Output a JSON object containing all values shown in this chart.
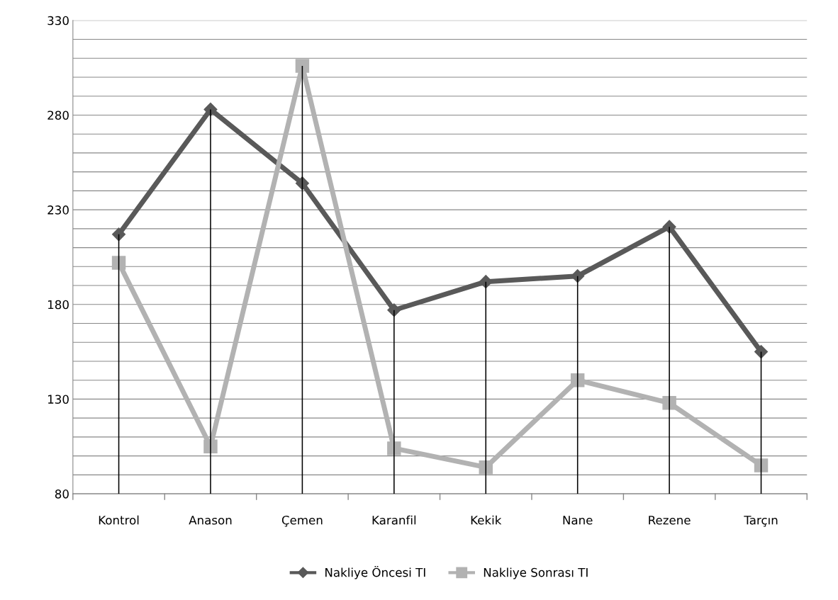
{
  "chart_data": {
    "type": "line",
    "categories": [
      "Kontrol",
      "Anason",
      "Çemen",
      "Karanfil",
      "Kekik",
      "Nane",
      "Rezene",
      "Tarçın"
    ],
    "series": [
      {
        "name": "Nakliye Öncesi TI",
        "color": "#595959",
        "marker": "diamond",
        "values": [
          217,
          283,
          244,
          177,
          192,
          195,
          221,
          155
        ]
      },
      {
        "name": "Nakliye Sonrası TI",
        "color": "#b2b2b2",
        "marker": "square",
        "values": [
          202,
          105,
          306,
          104,
          94,
          140,
          128,
          95
        ]
      },
      {
        "type": "bar",
        "color": "#000000",
        "values": [
          217,
          283,
          306,
          177,
          192,
          195,
          221,
          155
        ]
      }
    ],
    "ylim": [
      80,
      330
    ],
    "yticks": [
      80,
      {
        "value": 90,
        "label": null
      },
      {
        "value": 100,
        "label": null
      },
      {
        "value": 110,
        "label": null
      },
      {
        "value": 120,
        "label": null
      },
      130,
      {
        "value": 140,
        "label": null
      },
      {
        "value": 150,
        "label": null
      },
      {
        "value": 160,
        "label": null
      },
      {
        "value": 170,
        "label": null
      },
      180,
      {
        "value": 190,
        "label": null
      },
      {
        "value": 200,
        "label": null
      },
      {
        "value": 210,
        "label": null
      },
      {
        "value": 220,
        "label": null
      },
      230,
      {
        "value": 240,
        "label": null
      },
      {
        "value": 250,
        "label": null
      },
      {
        "value": 260,
        "label": null
      },
      {
        "value": 270,
        "label": null
      },
      280,
      {
        "value": 290,
        "label": null
      },
      {
        "value": 300,
        "label": null
      },
      {
        "value": 310,
        "label": null
      },
      {
        "value": 320,
        "label": null
      },
      330
    ],
    "grid": "y",
    "legend": "bottom"
  }
}
